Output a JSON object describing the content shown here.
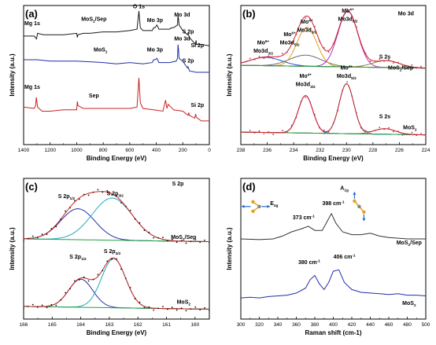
{
  "figure": {
    "title": ""
  },
  "chart_data": [
    {
      "id": "a",
      "panel_label": "(a)",
      "type": "line",
      "spectrum": "XPS survey",
      "xlabel": "Binding Energy (eV)",
      "ylabel": "Intensity (a.u.)",
      "xlim": [
        1400,
        0
      ],
      "ylim": [
        0,
        100
      ],
      "x_reversed": true,
      "y_ticks_shown": false,
      "x_ticks": [
        1400,
        1200,
        1000,
        800,
        600,
        400,
        200,
        0
      ],
      "series": [
        {
          "name": "MoS2/Sep",
          "color": "#1a1a1a",
          "x": [
            1400,
            1320,
            1303,
            1295,
            1250,
            1200,
            1100,
            1000,
            995,
            990,
            950,
            900,
            800,
            700,
            600,
            545,
            531,
            520,
            500,
            430,
            420,
            410,
            395,
            380,
            300,
            285,
            270,
            240,
            236,
            232,
            228,
            200,
            165,
            161,
            157,
            150,
            103,
            100,
            96,
            60,
            0
          ],
          "y": [
            78,
            78,
            76,
            80,
            79,
            79,
            79,
            80,
            77,
            79,
            80,
            80,
            81,
            81,
            82,
            83,
            96,
            84,
            82,
            82,
            84,
            84,
            86,
            83,
            83,
            84,
            84,
            86,
            93,
            90,
            86,
            82,
            79,
            80,
            79,
            77,
            72,
            75,
            72,
            72,
            71
          ]
        },
        {
          "name": "MoS2",
          "color": "#1f2fa8",
          "x": [
            1400,
            1300,
            1200,
            1100,
            1000,
            800,
            700,
            600,
            500,
            430,
            420,
            410,
            395,
            380,
            300,
            250,
            240,
            236,
            232,
            228,
            200,
            165,
            161,
            157,
            150,
            100,
            0
          ],
          "y": [
            61,
            61,
            60,
            60,
            60,
            59,
            58,
            59,
            58,
            59,
            61,
            61,
            62,
            59,
            59,
            60,
            62,
            72,
            68,
            62,
            60,
            55,
            56,
            55,
            53,
            52,
            52
          ]
        },
        {
          "name": "Sep",
          "color": "#cc2020",
          "x": [
            1400,
            1320,
            1310,
            1304,
            1295,
            1260,
            1200,
            1100,
            1000,
            995,
            990,
            950,
            900,
            800,
            700,
            600,
            545,
            531,
            520,
            500,
            420,
            350,
            330,
            320,
            310,
            290,
            270,
            200,
            160,
            155,
            150,
            110,
            103,
            99,
            90,
            60,
            0
          ],
          "y": [
            27,
            26,
            28,
            34,
            27,
            24,
            24,
            25,
            25,
            31,
            28,
            26,
            26,
            26,
            26,
            26,
            27,
            48,
            30,
            26,
            25,
            24,
            32,
            26,
            29,
            27,
            25,
            24,
            21,
            23,
            21,
            19,
            22,
            20,
            19,
            17,
            17
          ]
        }
      ],
      "annotations": [
        {
          "text": "O 1s",
          "x": 531,
          "y": 98
        },
        {
          "text": "Mg 1s",
          "x": 1335,
          "y": 86
        },
        {
          "text": "MoS2/Sep",
          "x": 870,
          "y": 89
        },
        {
          "text": "Mo 3p",
          "x": 410,
          "y": 88
        },
        {
          "text": "Mo 3d",
          "x": 205,
          "y": 92
        },
        {
          "text": "S 2p",
          "x": 160,
          "y": 80
        },
        {
          "text": "Si 2p",
          "x": 90,
          "y": 70
        },
        {
          "text": "MoS2",
          "x": 820,
          "y": 67
        },
        {
          "text": "Mo 3p",
          "x": 410,
          "y": 67
        },
        {
          "text": "Mo 3d",
          "x": 205,
          "y": 75
        },
        {
          "text": "S 2p",
          "x": 160,
          "y": 59
        },
        {
          "text": "Mg 1s",
          "x": 1335,
          "y": 40
        },
        {
          "text": "Sep",
          "x": 870,
          "y": 34
        },
        {
          "text": "Si 2p",
          "x": 90,
          "y": 27
        }
      ]
    },
    {
      "id": "b",
      "panel_label": "(b)",
      "type": "line",
      "spectrum": "Mo 3d",
      "xlabel": "Binding Energy (eV)",
      "ylabel": "Intensity (a.u.)",
      "xlim": [
        238,
        224
      ],
      "ylim": [
        0,
        100
      ],
      "x_reversed": true,
      "y_ticks_shown": false,
      "x_ticks": [
        238,
        236,
        234,
        232,
        230,
        228,
        226,
        224
      ],
      "curves": [
        {
          "group": "MoS2/Sep",
          "role": "raw data",
          "color": "#c0307a",
          "style": "dots"
        },
        {
          "group": "MoS2/Sep",
          "role": "envelope fit",
          "color": "#d02020"
        },
        {
          "group": "MoS2/Sep",
          "role": "background",
          "color": "#20a040"
        },
        {
          "group": "MoS2/Sep",
          "role": "peak",
          "label": "Mo6+ Mo3d3/2",
          "center": 236.1,
          "height": 6,
          "width": 1.2,
          "color": "#2050d0"
        },
        {
          "group": "MoS2/Sep",
          "role": "peak",
          "label": "Mo6+ Mo3d5/2",
          "center": 233.1,
          "height": 8,
          "width": 1.2,
          "color": "#6a6a6a"
        },
        {
          "group": "MoS2/Sep",
          "role": "peak",
          "label": "Mo4+ Mo3d3/2",
          "center": 233.0,
          "height": 28,
          "width": 0.75,
          "color": "#e0a020"
        },
        {
          "group": "MoS2/Sep",
          "role": "peak",
          "label": "Mo4+ Mo3d5/2",
          "center": 229.9,
          "height": 40,
          "width": 0.75,
          "color": "#b030c0"
        },
        {
          "group": "MoS2/Sep",
          "role": "peak",
          "label": "S 2s",
          "center": 227.0,
          "height": 5,
          "width": 1.0,
          "color": "#a07840"
        },
        {
          "group": "MoS2",
          "role": "raw data",
          "color": "#c0307a",
          "style": "dots"
        },
        {
          "group": "MoS2",
          "role": "envelope fit",
          "color": "#d02020"
        },
        {
          "group": "MoS2",
          "role": "background",
          "color": "#20a040"
        },
        {
          "group": "MoS2",
          "role": "peak",
          "label": "Mo4+ Mo3d3/2",
          "center": 233.1,
          "height": 27,
          "width": 0.55,
          "color": "#7a30c0"
        },
        {
          "group": "MoS2",
          "role": "peak",
          "label": "Mo4+ Mo3d5/2",
          "center": 230.0,
          "height": 36,
          "width": 0.55,
          "color": "#20a8c0"
        },
        {
          "group": "MoS2",
          "role": "peak",
          "label": "S 2s",
          "center": 227.1,
          "height": 4,
          "width": 0.8,
          "color": "#a07840"
        }
      ],
      "annotations": [
        {
          "text": "Mo 3d",
          "x": 225.5,
          "y": 93
        },
        {
          "text": "Mo6+",
          "x": 236.3,
          "y": 72
        },
        {
          "text": "Mo3d3/2",
          "x": 236.3,
          "y": 66
        },
        {
          "text": "Mo6+",
          "x": 234.3,
          "y": 78
        },
        {
          "text": "Mo3d5/2",
          "x": 234.3,
          "y": 72
        },
        {
          "text": "Mo4+",
          "x": 233.0,
          "y": 87
        },
        {
          "text": "Mo3d3/2",
          "x": 233.0,
          "y": 81
        },
        {
          "text": "Mo4+",
          "x": 229.9,
          "y": 95
        },
        {
          "text": "Mo3d5/2",
          "x": 229.9,
          "y": 89
        },
        {
          "text": "S 2s",
          "x": 227.1,
          "y": 62
        },
        {
          "text": "MoS2/Sep",
          "x": 225.9,
          "y": 54
        },
        {
          "text": "Mo4+",
          "x": 233.1,
          "y": 48
        },
        {
          "text": "Mo3d3/2",
          "x": 233.1,
          "y": 42
        },
        {
          "text": "Mo4+",
          "x": 230.0,
          "y": 54
        },
        {
          "text": "Mo3d5/2",
          "x": 230.0,
          "y": 48
        },
        {
          "text": "S 2s",
          "x": 227.1,
          "y": 19
        },
        {
          "text": "MoS2",
          "x": 225.2,
          "y": 11
        }
      ]
    },
    {
      "id": "c",
      "panel_label": "(c)",
      "type": "line",
      "spectrum": "S 2p",
      "xlabel": "Binding Energy (eV)",
      "ylabel": "Intensity (a.u.)",
      "xlim": [
        166,
        159.5
      ],
      "ylim": [
        0,
        100
      ],
      "x_reversed": true,
      "y_ticks_shown": false,
      "x_ticks": [
        166,
        165,
        164,
        163,
        162,
        161,
        160
      ],
      "curves": [
        {
          "group": "MoS2/Sep",
          "role": "raw data",
          "color": "#111111",
          "style": "dots"
        },
        {
          "group": "MoS2/Sep",
          "role": "envelope fit",
          "color": "#d02020"
        },
        {
          "group": "MoS2/Sep",
          "role": "background",
          "color": "#20a040"
        },
        {
          "group": "MoS2/Sep",
          "role": "peak",
          "label": "S 2p1/2",
          "center": 164.1,
          "height": 22,
          "width": 0.6,
          "color": "#2030a0"
        },
        {
          "group": "MoS2/Sep",
          "role": "peak",
          "label": "S 2p3/2",
          "center": 162.9,
          "height": 30,
          "width": 0.7,
          "color": "#20a8c0"
        },
        {
          "group": "MoS2",
          "role": "raw data",
          "color": "#111111",
          "style": "dots"
        },
        {
          "group": "MoS2",
          "role": "envelope fit",
          "color": "#d02020"
        },
        {
          "group": "MoS2",
          "role": "background",
          "color": "#20a040"
        },
        {
          "group": "MoS2",
          "role": "peak",
          "label": "S 2p1/2",
          "center": 164.0,
          "height": 20,
          "width": 0.42,
          "color": "#2030a0"
        },
        {
          "group": "MoS2",
          "role": "peak",
          "label": "S 2p3/2",
          "center": 162.85,
          "height": 35,
          "width": 0.42,
          "color": "#20a8c0"
        }
      ],
      "annotations": [
        {
          "text": "S 2p",
          "x": 160.6,
          "y": 95
        },
        {
          "text": "S 2p1/2",
          "x": 164.5,
          "y": 86
        },
        {
          "text": "S 2p3/2",
          "x": 162.8,
          "y": 88
        },
        {
          "text": "MoS2/Sep",
          "x": 160.4,
          "y": 57
        },
        {
          "text": "S 2p1/2",
          "x": 164.1,
          "y": 43
        },
        {
          "text": "S 2p3/2",
          "x": 162.9,
          "y": 47
        },
        {
          "text": "MoS2",
          "x": 160.4,
          "y": 11
        }
      ]
    },
    {
      "id": "d",
      "panel_label": "(d)",
      "type": "line",
      "spectrum": "Raman",
      "xlabel": "Raman shift (cm-1)",
      "ylabel": "Intensity (a.u.)",
      "xlim": [
        300,
        500
      ],
      "ylim": [
        0,
        100
      ],
      "x_reversed": false,
      "y_ticks_shown": false,
      "x_ticks": [
        300,
        320,
        340,
        360,
        380,
        400,
        420,
        440,
        460,
        480,
        500
      ],
      "series": [
        {
          "name": "MoS2/Sep",
          "color": "#333333",
          "x": [
            300,
            320,
            335,
            345,
            355,
            365,
            373,
            380,
            388,
            393,
            398,
            403,
            410,
            420,
            430,
            440,
            450,
            460,
            480,
            500
          ],
          "y": [
            57,
            56.5,
            57,
            59,
            62,
            64,
            66,
            63,
            63,
            69,
            75,
            68,
            62,
            60,
            60,
            61,
            59,
            58,
            57,
            57
          ]
        },
        {
          "name": "MoS2",
          "color": "#1f2fa8",
          "x": [
            300,
            310,
            320,
            330,
            340,
            350,
            360,
            370,
            375,
            380,
            385,
            390,
            395,
            400,
            406,
            412,
            420,
            430,
            440,
            450,
            460,
            470,
            480,
            490,
            500
          ],
          "y": [
            15,
            15.5,
            15,
            16,
            16.5,
            17,
            18.5,
            22,
            28,
            31,
            25,
            21,
            26,
            34,
            35,
            26,
            21,
            19,
            18.5,
            18,
            17.5,
            18,
            17,
            17,
            16.5
          ]
        }
      ],
      "annotations": [
        {
          "text": "A1g",
          "x": 412,
          "y": 92
        },
        {
          "text": "E12g",
          "x": 336,
          "y": 81
        },
        {
          "text": "398 cm-1",
          "x": 400,
          "y": 81
        },
        {
          "text": "373 cm-1",
          "x": 368,
          "y": 71
        },
        {
          "text": "MoS2/Sep",
          "x": 482,
          "y": 53
        },
        {
          "text": "406 cm-1",
          "x": 412,
          "y": 43
        },
        {
          "text": "380 cm-1",
          "x": 374,
          "y": 39
        },
        {
          "text": "MoS2",
          "x": 482,
          "y": 10
        }
      ]
    }
  ],
  "colors": {
    "axes": "#000000",
    "molecule_S": "#e0a020",
    "molecule_Mo": "#808080",
    "vibration_arrow": "#2a6cc4"
  }
}
